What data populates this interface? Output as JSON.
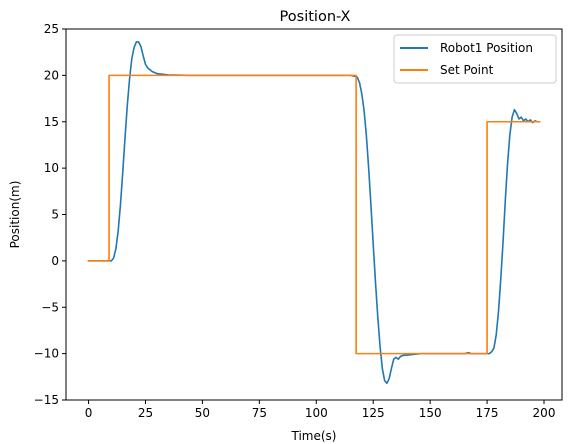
{
  "chart_data": {
    "type": "line",
    "title": "Position-X",
    "xlabel": "Time(s)",
    "ylabel": "Position(m)",
    "xlim": [
      -9.9,
      207.9
    ],
    "ylim": [
      -15,
      25
    ],
    "xticks": [
      0,
      25,
      50,
      75,
      100,
      125,
      150,
      175,
      200
    ],
    "yticks": [
      -15,
      -10,
      -5,
      0,
      5,
      10,
      15,
      20,
      25
    ],
    "ytick_labels": [
      "−15",
      "−10",
      "−5",
      "0",
      "5",
      "10",
      "15",
      "20",
      "25"
    ],
    "grid": false,
    "legend_position": "top-right",
    "series": [
      {
        "name": "Robot1 Position",
        "color": "#1f77b4",
        "x": [
          0,
          9,
          10,
          11,
          12,
          13,
          14,
          15,
          16,
          17,
          18,
          19,
          20,
          21,
          22,
          23,
          24,
          25,
          26,
          28,
          30,
          35,
          45,
          60,
          80,
          100,
          110,
          115,
          117,
          118,
          119,
          120,
          121,
          122,
          123,
          124,
          125,
          126,
          127,
          128,
          129,
          130,
          131,
          132,
          133,
          134,
          135,
          136,
          137,
          138,
          140,
          142,
          144,
          146,
          148,
          150,
          155,
          160,
          165,
          167,
          168,
          170,
          175,
          176,
          177,
          178,
          179,
          180,
          181,
          182,
          183,
          184,
          185,
          186,
          187,
          188,
          189,
          190,
          191,
          192,
          193,
          194,
          195,
          196,
          197,
          198
        ],
        "y": [
          0,
          0,
          0,
          0.3,
          1.3,
          3.2,
          6.0,
          9.5,
          13.2,
          16.7,
          19.6,
          21.8,
          23.0,
          23.6,
          23.6,
          23.1,
          22.1,
          21.2,
          20.8,
          20.4,
          20.2,
          20.05,
          20.0,
          20.0,
          20.0,
          20.0,
          20.0,
          20.0,
          19.9,
          19.8,
          19.2,
          18.0,
          16.2,
          13.5,
          10.0,
          6.0,
          1.8,
          -2.3,
          -6.0,
          -9.2,
          -11.6,
          -12.9,
          -13.2,
          -12.7,
          -11.6,
          -10.6,
          -10.4,
          -10.6,
          -10.3,
          -10.2,
          -10.15,
          -10.1,
          -10.05,
          -10.0,
          -10.0,
          -10.0,
          -10.0,
          -10.0,
          -10.0,
          -9.9,
          -10.0,
          -10.0,
          -10.0,
          -10.0,
          -9.8,
          -9.4,
          -8.0,
          -5.5,
          -2.0,
          2.0,
          6.5,
          10.5,
          13.6,
          15.5,
          16.3,
          15.9,
          15.3,
          15.5,
          15.1,
          15.3,
          15.0,
          15.2,
          14.9,
          15.1,
          15.0,
          15.0
        ]
      },
      {
        "name": "Set Point",
        "color": "#ff7f0e",
        "x": [
          0,
          9,
          9,
          117.5,
          117.5,
          175,
          175,
          198
        ],
        "y": [
          0,
          0,
          20,
          20,
          -10,
          -10,
          15,
          15
        ]
      }
    ]
  }
}
